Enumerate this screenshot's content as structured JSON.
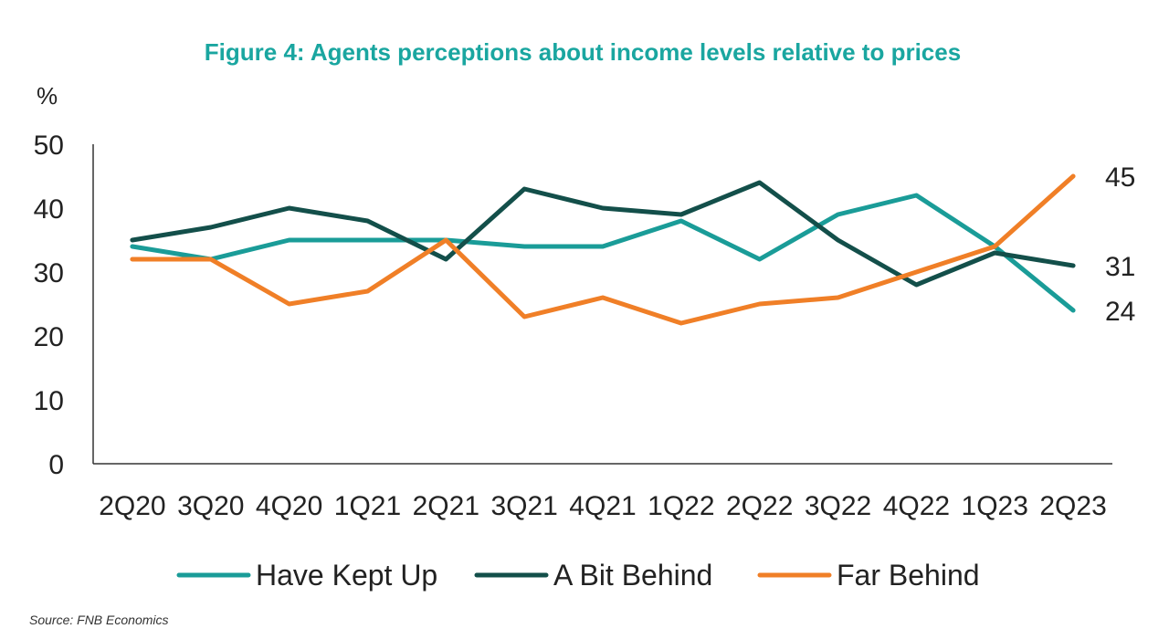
{
  "chart_data": {
    "type": "line",
    "title": "Figure 4: Agents perceptions about income levels relative to prices",
    "ylabel": "%",
    "xlabel": "",
    "ylim": [
      0,
      50
    ],
    "yticks": [
      "50",
      "40",
      "30",
      "20",
      "10",
      "0"
    ],
    "categories": [
      "2Q20",
      "3Q20",
      "4Q20",
      "1Q21",
      "2Q21",
      "3Q21",
      "4Q21",
      "1Q22",
      "2Q22",
      "3Q22",
      "4Q22",
      "1Q23",
      "2Q23"
    ],
    "series": [
      {
        "name": "Have Kept Up",
        "color": "#1a9c98",
        "values": [
          34,
          32,
          35,
          35,
          35,
          34,
          34,
          38,
          32,
          39,
          42,
          34,
          24
        ]
      },
      {
        "name": "A Bit Behind",
        "color": "#134f4a",
        "values": [
          35,
          37,
          40,
          38,
          32,
          43,
          40,
          39,
          44,
          35,
          28,
          33,
          31
        ]
      },
      {
        "name": "Far Behind",
        "color": "#f07f27",
        "values": [
          32,
          32,
          25,
          27,
          35,
          23,
          26,
          22,
          25,
          26,
          30,
          34,
          45
        ]
      }
    ],
    "end_labels": [
      "45",
      "31",
      "24"
    ],
    "legend_position": "bottom",
    "grid": false,
    "source": "Source: FNB Economics",
    "title_color": "#1aa6a0"
  }
}
